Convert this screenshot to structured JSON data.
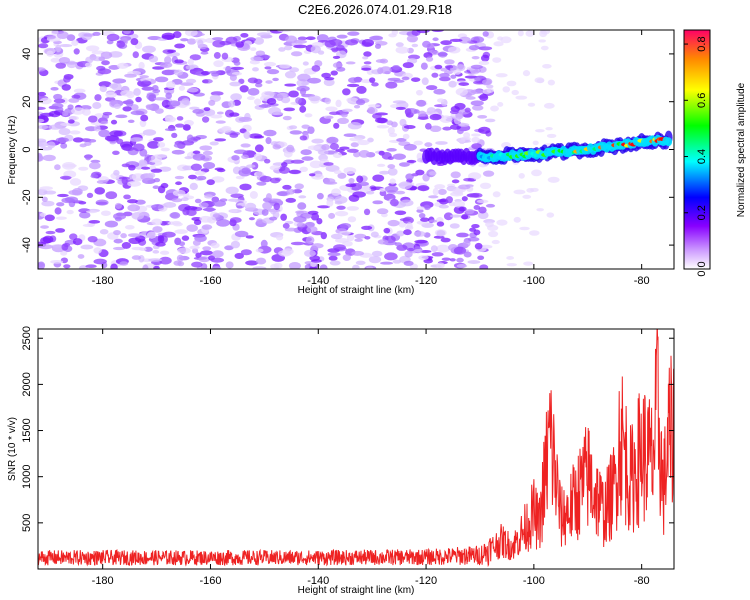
{
  "title": "C2E6.2026.074.01.29.R18",
  "chart_data": [
    {
      "type": "heatmap",
      "xlabel": "Height of straight line (km)",
      "ylabel": "Frequency (Hz)",
      "xlim": [
        -192,
        -74
      ],
      "ylim": [
        -50,
        50
      ],
      "xticks": [
        -180,
        -160,
        -140,
        -120,
        -100,
        -80
      ],
      "yticks": [
        -40,
        -20,
        0,
        20,
        40
      ],
      "colorbar": {
        "label": "Normalized spectral amplitude",
        "range": [
          0,
          0.85
        ],
        "ticks": [
          "0.0",
          "0.2",
          "0.4",
          "0.6",
          "0.8"
        ],
        "colormap": [
          "#ffffff",
          "#8800ff",
          "#0000ff",
          "#00ffff",
          "#00ff00",
          "#ffff00",
          "#ff0000"
        ]
      },
      "noise_region": {
        "x": [
          -192,
          -108
        ],
        "amplitude": 0.12
      },
      "signal_trace": {
        "x": [
          -120,
          -110,
          -100,
          -90,
          -80,
          -75
        ],
        "freq": [
          -3,
          -3,
          -2,
          0,
          3,
          4
        ],
        "amplitude": [
          0.1,
          0.4,
          0.55,
          0.65,
          0.8,
          0.85
        ]
      }
    },
    {
      "type": "line",
      "xlabel": "Height of straight line (km)",
      "ylabel": "SNR (10 * v/v)",
      "xlim": [
        -192,
        -74
      ],
      "ylim": [
        0,
        2600
      ],
      "xticks": [
        -180,
        -160,
        -140,
        -120,
        -100,
        -80
      ],
      "yticks": [
        500,
        1000,
        1500,
        2000,
        2500
      ],
      "color": "#ee2222",
      "series": {
        "name": "SNR",
        "x": [
          -192,
          -180,
          -160,
          -140,
          -120,
          -110,
          -106,
          -104,
          -102,
          -100,
          -99,
          -97,
          -96,
          -95,
          -93,
          -90,
          -87,
          -85,
          -84,
          -82,
          -80,
          -78,
          -77,
          -76,
          -75
        ],
        "y": [
          150,
          150,
          150,
          150,
          160,
          200,
          450,
          350,
          600,
          900,
          700,
          2150,
          1500,
          800,
          1000,
          1500,
          900,
          1300,
          2200,
          1400,
          1900,
          1700,
          2600,
          1200,
          2100
        ]
      }
    }
  ]
}
